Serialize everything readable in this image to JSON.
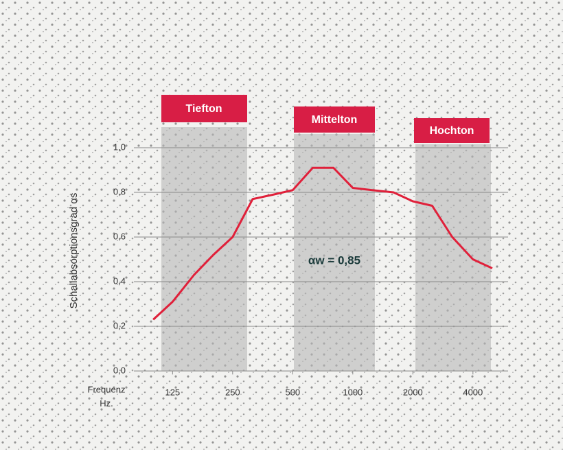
{
  "chart_data": {
    "type": "line",
    "y_label": "Schallabsorptionsgrad αs",
    "x_label": [
      "Frequenz",
      "Hz."
    ],
    "bands": [
      "Tiefton",
      "Mittelton",
      "Hochton"
    ],
    "annotation": "αw = 0,85",
    "x": [
      100,
      125,
      160,
      200,
      250,
      315,
      400,
      500,
      630,
      800,
      1000,
      1250,
      1600,
      2000,
      2500,
      3150,
      4000,
      5000
    ],
    "values": [
      0.23,
      0.31,
      0.43,
      0.52,
      0.6,
      0.77,
      0.79,
      0.81,
      0.91,
      0.91,
      0.82,
      0.81,
      0.8,
      0.76,
      0.74,
      0.6,
      0.5,
      0.46
    ],
    "color": "#e0203a",
    "xlog": true,
    "xlim": [
      80,
      6000
    ],
    "xticks": [
      125,
      250,
      500,
      1000,
      2000,
      4000
    ],
    "ylim": [
      0,
      1
    ],
    "yticks": [
      {
        "value": 0,
        "label": "0,0"
      },
      {
        "value": 0.2,
        "label": "0,2"
      },
      {
        "value": 0.4,
        "label": "0,4"
      },
      {
        "value": 0.6,
        "label": "0,6"
      },
      {
        "value": 0.8,
        "label": "0,8"
      },
      {
        "value": 1,
        "label": "1,0"
      }
    ],
    "grid": true
  }
}
